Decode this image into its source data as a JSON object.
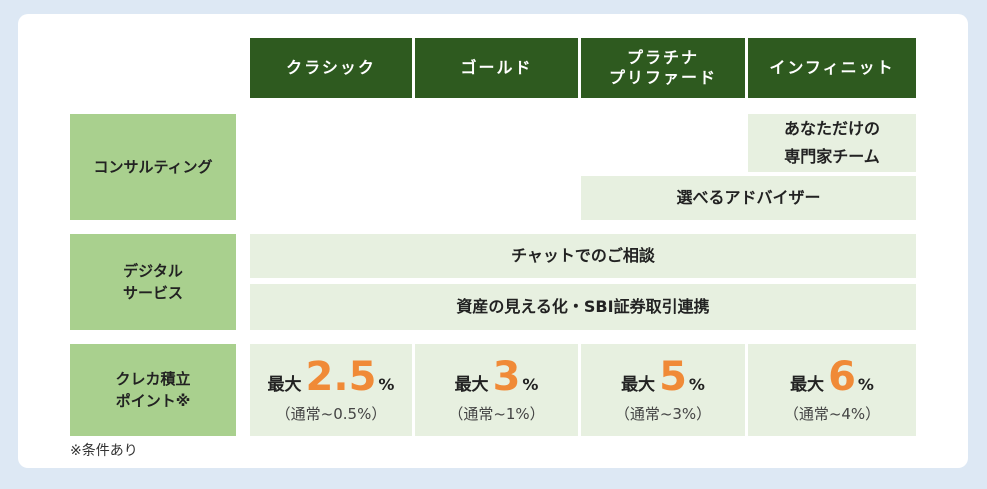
{
  "plans": [
    "クラシック",
    "ゴールド",
    "プラチナ\nプリファード",
    "インフィニット"
  ],
  "rows": {
    "consulting": {
      "label": "コンサルティング",
      "expert_team": "あなただけの\n専門家チーム",
      "choose_advisor": "選べるアドバイザー"
    },
    "digital": {
      "label": "デジタル\nサービス",
      "chat": "チャットでのご相談",
      "visualization": "資産の見える化・SBI証券取引連携"
    },
    "points": {
      "label": "クレカ積立\nポイント※",
      "prefix": "最大",
      "unit": "%",
      "cells": [
        {
          "max": "2.5",
          "normal": "（通常~0.5%）"
        },
        {
          "max": "3",
          "normal": "（通常~1%）"
        },
        {
          "max": "5",
          "normal": "（通常~3%）"
        },
        {
          "max": "6",
          "normal": "（通常~4%）"
        }
      ]
    }
  },
  "footnote": "※条件あり",
  "colors": {
    "header_bg": "#2e5a1f",
    "row_label_bg": "#a9d08e",
    "cell_bg": "#e7f0e0",
    "accent": "#f08a37",
    "page_bg": "#dde8f4"
  }
}
